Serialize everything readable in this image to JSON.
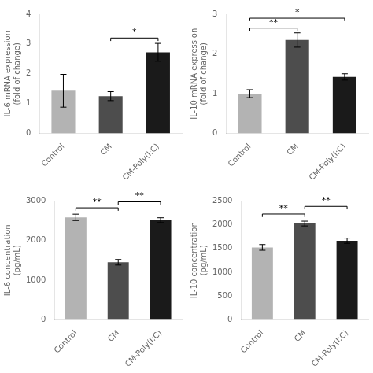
{
  "chart_data": [
    {
      "type": "bar",
      "ylabel": "IL-6 mRNA expression\n(fold of change)",
      "categories": [
        "Control",
        "CM",
        "CM-Poly(I:C)"
      ],
      "values": [
        1.43,
        1.25,
        2.72
      ],
      "errors": [
        0.55,
        0.15,
        0.3
      ],
      "colors": [
        "#b3b3b3",
        "#4d4d4d",
        "#1a1a1a"
      ],
      "ylim": [
        0,
        4
      ],
      "yticks": [
        0,
        1,
        2,
        3,
        4
      ],
      "grid": false,
      "annotations": [
        {
          "from": "CM",
          "to": "CM-Poly(I:C)",
          "y": 3.2,
          "label": "*"
        }
      ]
    },
    {
      "type": "bar",
      "ylabel": "IL-10 mRNA expression\n(fold of change)",
      "categories": [
        "Control",
        "CM",
        "CM-Poly(I:C)"
      ],
      "values": [
        1.0,
        2.35,
        1.42
      ],
      "errors": [
        0.1,
        0.18,
        0.08
      ],
      "colors": [
        "#b3b3b3",
        "#4d4d4d",
        "#1a1a1a"
      ],
      "ylim": [
        0,
        3
      ],
      "yticks": [
        0,
        1,
        2,
        3
      ],
      "grid": false,
      "annotations": [
        {
          "from": "Control",
          "to": "CM",
          "y": 2.65,
          "label": "**"
        },
        {
          "from": "Control",
          "to": "CM-Poly(I:C)",
          "y": 2.9,
          "label": "*"
        }
      ]
    },
    {
      "type": "bar",
      "ylabel": "IL-6 concentration\n(pg/mL)",
      "categories": [
        "Control",
        "CM",
        "CM-Poly(I:C)"
      ],
      "values": [
        2580,
        1450,
        2510
      ],
      "errors": [
        80,
        70,
        60
      ],
      "colors": [
        "#b3b3b3",
        "#4d4d4d",
        "#1a1a1a"
      ],
      "ylim": [
        0,
        3000
      ],
      "yticks": [
        0,
        1000,
        2000,
        3000
      ],
      "grid": false,
      "annotations": [
        {
          "from": "Control",
          "to": "CM",
          "y": 2820,
          "label": "**"
        },
        {
          "from": "CM",
          "to": "CM-Poly(I:C)",
          "y": 2970,
          "label": "**"
        }
      ]
    },
    {
      "type": "bar",
      "ylabel": "IL-10 concentration\n(pg/mL)",
      "categories": [
        "Control",
        "CM",
        "CM-Poly(I:C)"
      ],
      "values": [
        1520,
        2020,
        1660
      ],
      "errors": [
        60,
        50,
        55
      ],
      "colors": [
        "#b3b3b3",
        "#4d4d4d",
        "#1a1a1a"
      ],
      "ylim": [
        0,
        2500
      ],
      "yticks": [
        0,
        500,
        1000,
        1500,
        2000,
        2500
      ],
      "grid": false,
      "annotations": [
        {
          "from": "Control",
          "to": "CM",
          "y": 2220,
          "label": "**"
        },
        {
          "from": "CM",
          "to": "CM-Poly(I:C)",
          "y": 2380,
          "label": "**"
        }
      ]
    }
  ]
}
